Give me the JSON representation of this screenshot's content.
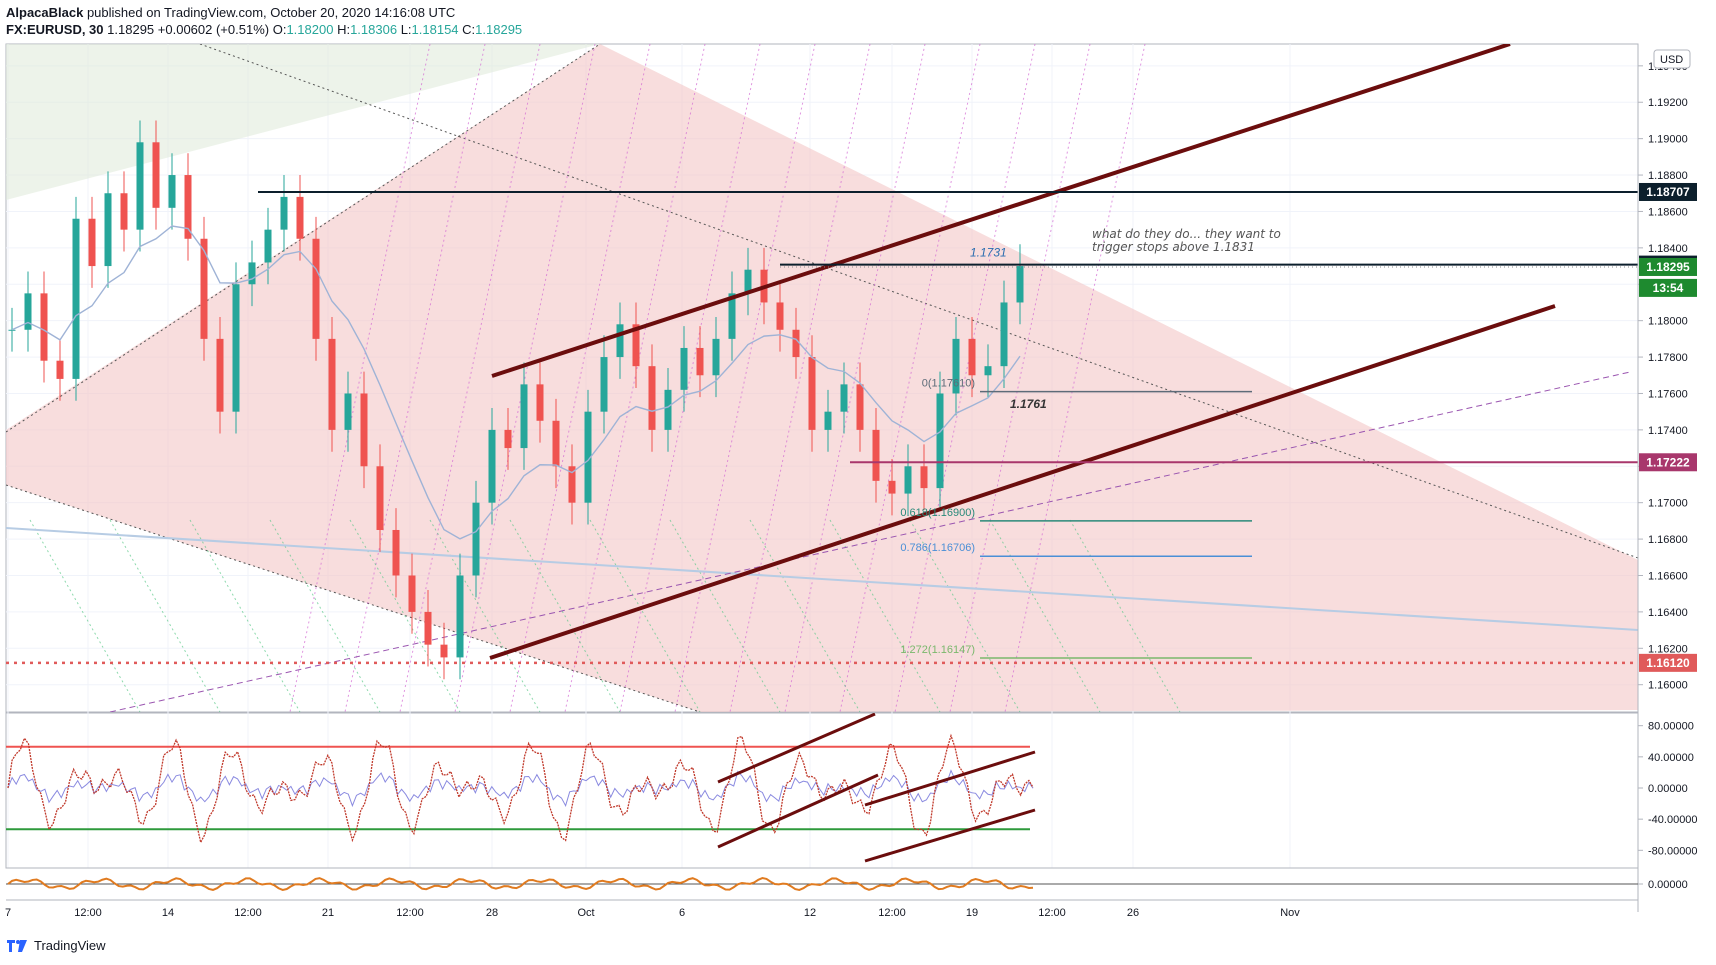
{
  "header": {
    "author": "AlpacaBlack",
    "published": "published on TradingView.com, October 20, 2020 14:16:08 UTC",
    "symbol": "FX:EURUSD, 30",
    "last": "1.18295",
    "change": "+0.00602 (+0.51%)",
    "o_label": "O:",
    "o_val": "1.18200",
    "h_label": "H:",
    "h_val": "1.18306",
    "l_label": "L:",
    "l_val": "1.18154",
    "c_label": "C:",
    "c_val": "1.18295"
  },
  "footer": {
    "brand": "TradingView"
  },
  "colors": {
    "up": "#26a69a",
    "down": "#ef5350",
    "channel": "#6b0d0d",
    "fill_red": "#f3c7c7",
    "fill_green": "#dfead8",
    "ema": "#9fb3d6"
  },
  "chart_data": {
    "type": "candlestick",
    "currency": "USD",
    "y_axis": {
      "range": [
        1.1585,
        1.1952
      ],
      "ticks": [
        "1.19400",
        "1.19200",
        "1.19000",
        "1.18800",
        "1.18600",
        "1.18400",
        "1.18200",
        "1.18000",
        "1.17800",
        "1.17600",
        "1.17400",
        "1.17200",
        "1.17000",
        "1.16800",
        "1.16600",
        "1.16400",
        "1.16200",
        "1.16000"
      ]
    },
    "x_axis": {
      "ticks": [
        "7",
        "12:00",
        "14",
        "12:00",
        "21",
        "12:00",
        "28",
        "Oct",
        "6",
        "12",
        "12:00",
        "19",
        "12:00",
        "26",
        "Nov"
      ]
    },
    "price_labels": [
      {
        "value": 1.18707,
        "text": "1.18707",
        "color": "#0c1f2c"
      },
      {
        "value": 1.18308,
        "text": "1.18308",
        "color": "#0c1f2c"
      },
      {
        "value": 1.18295,
        "text": "1.18295",
        "color": "#1e8a2f"
      },
      {
        "value": 1.1818,
        "text": "13:54",
        "color": "#1e8a2f"
      },
      {
        "value": 1.17222,
        "text": "1.17222",
        "color": "#a8376c"
      },
      {
        "value": 1.1612,
        "text": "1.16120",
        "color": "#e05a5a"
      }
    ],
    "fib_levels": [
      {
        "text": "0(1.17610)",
        "value": 1.1761,
        "color": "#5d6b78"
      },
      {
        "text": "0.618(1.16900)",
        "value": 1.169,
        "color": "#2a8a7a"
      },
      {
        "text": "0.786(1.16706)",
        "value": 1.16706,
        "color": "#4a8fd6"
      },
      {
        "text": "1.272(1.16147)",
        "value": 1.16147,
        "color": "#7ab86c"
      }
    ],
    "annotations": [
      {
        "text": "1.1731",
        "color": "#2a6db0"
      },
      {
        "text": "1.1761",
        "color": "#333333"
      },
      {
        "text": "what do they do... they want to",
        "color": "#555555"
      },
      {
        "text": "trigger stops above 1.1831",
        "color": "#555555"
      }
    ],
    "series": [
      {
        "name": "EURUSD 30m close (approx.)",
        "values": [
          1.1795,
          1.1815,
          1.1778,
          1.1768,
          1.1856,
          1.183,
          1.187,
          1.185,
          1.1898,
          1.1862,
          1.188,
          1.1845,
          1.179,
          1.175,
          1.182,
          1.1832,
          1.185,
          1.1868,
          1.1845,
          1.179,
          1.174,
          1.176,
          1.172,
          1.1685,
          1.166,
          1.164,
          1.1622,
          1.1615,
          1.166,
          1.17,
          1.174,
          1.173,
          1.1765,
          1.1745,
          1.172,
          1.17,
          1.175,
          1.178,
          1.1798,
          1.1775,
          1.174,
          1.1762,
          1.1785,
          1.177,
          1.179,
          1.1815,
          1.1828,
          1.181,
          1.1795,
          1.178,
          1.174,
          1.175,
          1.1765,
          1.174,
          1.1712,
          1.1705,
          1.172,
          1.1708,
          1.176,
          1.179,
          1.177,
          1.1775,
          1.181,
          1.183
        ]
      }
    ],
    "oscillator": {
      "ticks": [
        "80.00000",
        "40.00000",
        "0.00000",
        "-40.00000",
        "-80.00000"
      ],
      "range": [
        -95,
        95
      ],
      "levels": [
        53,
        -53
      ]
    },
    "oscillator2": {
      "ticks": [
        "0.00000"
      ]
    }
  }
}
